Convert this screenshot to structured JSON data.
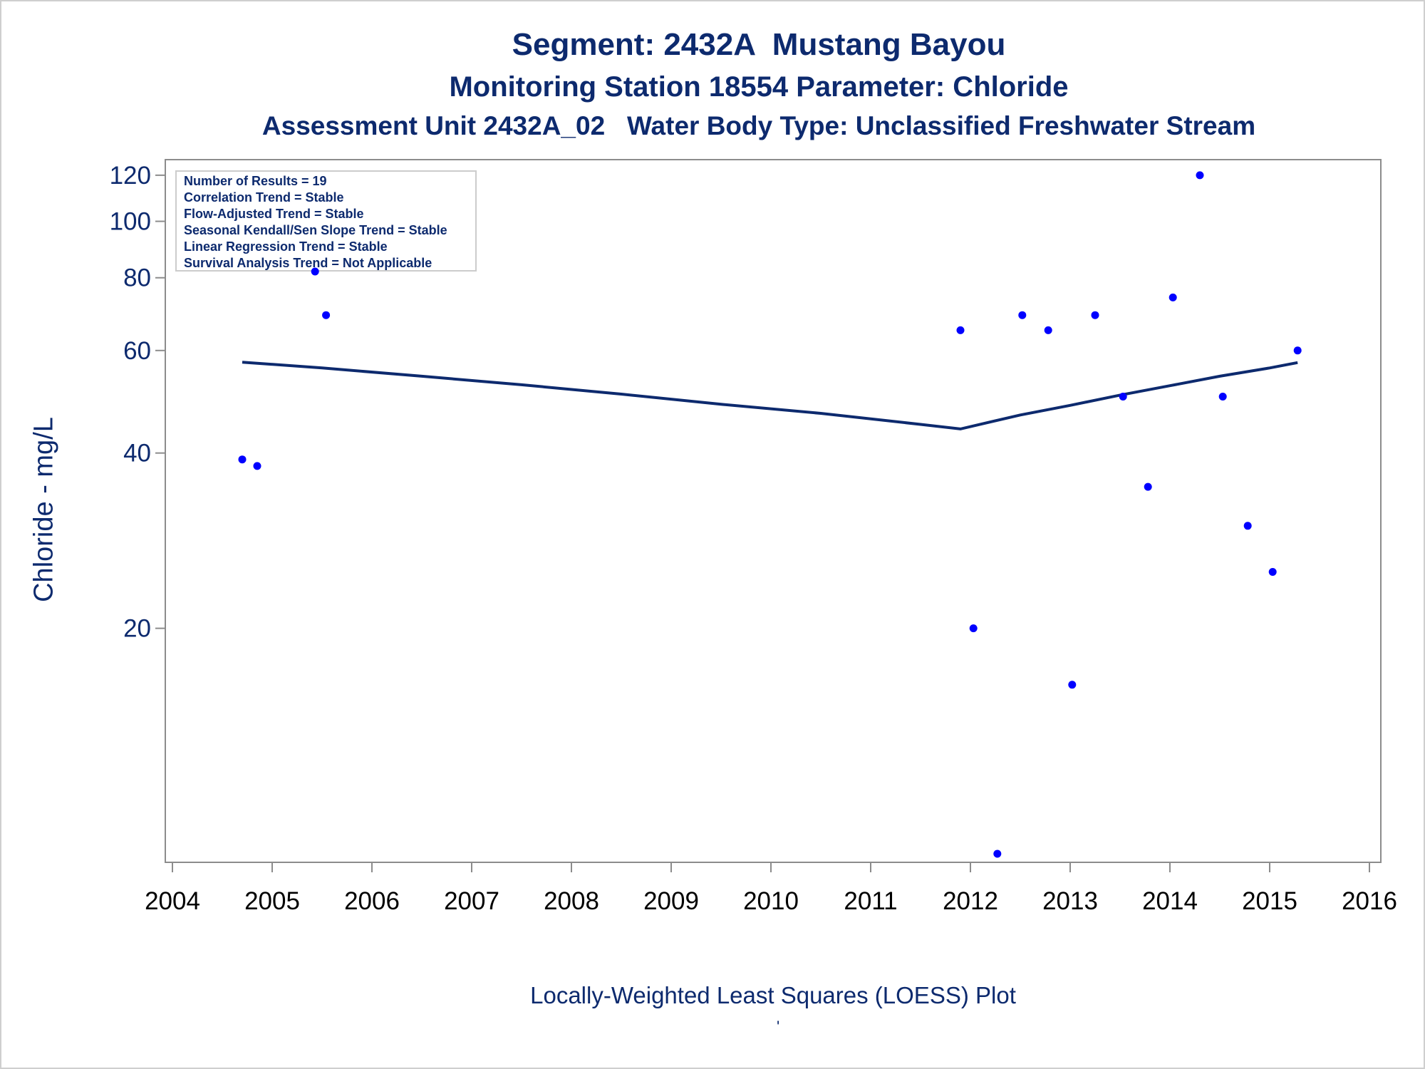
{
  "chart_data": {
    "type": "scatter",
    "title": "Segment: 2432A  Mustang Bayou",
    "subtitle_1": "Monitoring Station 18554 Parameter: Chloride",
    "subtitle_2": "Assessment Unit 2432A_02   Water Body Type: Unclassified Freshwater Stream",
    "ylabel": "Chloride - mg/L",
    "footer": "Locally-Weighted Least Squares (LOESS) Plot",
    "footer_mark": "'",
    "yscale": "log",
    "xlim": [
      2004,
      2016
    ],
    "ylim": [
      8.2,
      122
    ],
    "x_ticks": [
      2004,
      2005,
      2006,
      2007,
      2008,
      2009,
      2010,
      2011,
      2012,
      2013,
      2014,
      2015,
      2016
    ],
    "y_ticks": [
      20,
      40,
      60,
      80,
      100,
      120
    ],
    "stats_lines": [
      "Number of Results = 19",
      "Correlation Trend = Stable",
      "Flow-Adjusted Trend = Stable",
      "Seasonal Kendall/Sen Slope Trend = Stable",
      "Linear Regression Trend = Stable",
      "Survival Analysis Trend = Not Applicable"
    ],
    "points": [
      {
        "x": 2004.7,
        "y": 39
      },
      {
        "x": 2004.85,
        "y": 38
      },
      {
        "x": 2005.43,
        "y": 82
      },
      {
        "x": 2005.54,
        "y": 69
      },
      {
        "x": 2011.9,
        "y": 65
      },
      {
        "x": 2012.03,
        "y": 20
      },
      {
        "x": 2012.27,
        "y": 8.2
      },
      {
        "x": 2012.52,
        "y": 69
      },
      {
        "x": 2012.78,
        "y": 65
      },
      {
        "x": 2013.02,
        "y": 16
      },
      {
        "x": 2013.25,
        "y": 69
      },
      {
        "x": 2013.53,
        "y": 50
      },
      {
        "x": 2013.78,
        "y": 35
      },
      {
        "x": 2014.03,
        "y": 74
      },
      {
        "x": 2014.3,
        "y": 120
      },
      {
        "x": 2014.53,
        "y": 50
      },
      {
        "x": 2014.78,
        "y": 30
      },
      {
        "x": 2015.03,
        "y": 25
      },
      {
        "x": 2015.28,
        "y": 60
      }
    ],
    "loess": {
      "name": "LOESS",
      "points": [
        {
          "x": 2004.7,
          "y": 57.3
        },
        {
          "x": 2005.5,
          "y": 56.0
        },
        {
          "x": 2006.5,
          "y": 54.2
        },
        {
          "x": 2007.5,
          "y": 52.4
        },
        {
          "x": 2008.5,
          "y": 50.5
        },
        {
          "x": 2009.5,
          "y": 48.5
        },
        {
          "x": 2010.5,
          "y": 46.8
        },
        {
          "x": 2011.5,
          "y": 44.8
        },
        {
          "x": 2011.9,
          "y": 44.0
        },
        {
          "x": 2012.5,
          "y": 46.5
        },
        {
          "x": 2013.0,
          "y": 48.3
        },
        {
          "x": 2013.5,
          "y": 50.3
        },
        {
          "x": 2014.0,
          "y": 52.2
        },
        {
          "x": 2014.5,
          "y": 54.2
        },
        {
          "x": 2015.0,
          "y": 56.0
        },
        {
          "x": 2015.28,
          "y": 57.2
        }
      ]
    },
    "colors": {
      "points": "#0000ff",
      "line": "#0d2a6e",
      "text": "#0d2a6e",
      "axis": "#8c8c8c"
    }
  }
}
